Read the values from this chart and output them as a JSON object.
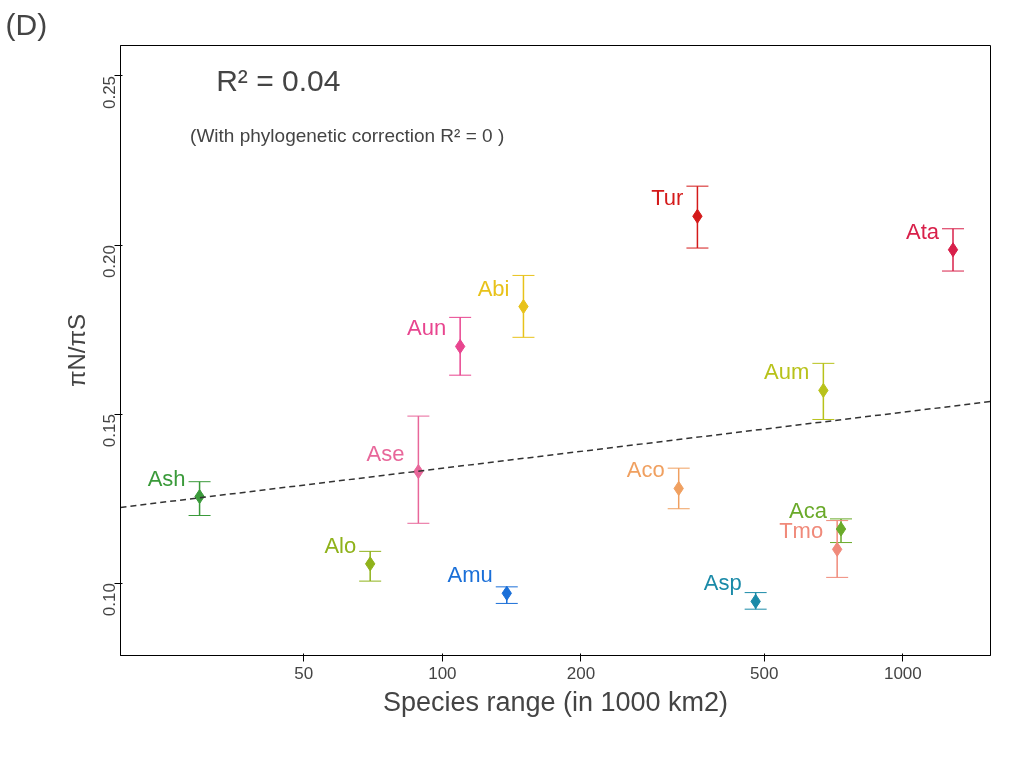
{
  "chart_data": {
    "type": "scatter",
    "xlabel": "Species range (in 1000 km2)",
    "ylabel": "πN/πS",
    "annotations": [
      "(D)",
      "R² = 0.04",
      "(With phylogenetic correction  R² = 0 )"
    ],
    "log": "x",
    "xlim": [
      20,
      1550
    ],
    "ylim": [
      0.0786,
      0.259
    ],
    "xticks": [
      50,
      100,
      200,
      500,
      1000
    ],
    "yticks": [
      {
        "value": 0.1,
        "label": "0.10"
      },
      {
        "value": 0.15,
        "label": "0.15"
      },
      {
        "value": 0.2,
        "label": "0.20"
      },
      {
        "value": 0.25,
        "label": "0.25"
      }
    ],
    "grid": false,
    "marker": "diamond",
    "series": [
      {
        "name": "Ash",
        "color": "#3a9a3a",
        "x": [
          29.7
        ],
        "values": [
          0.1256
        ],
        "errors": [
          [
            0.12,
            0.13
          ]
        ]
      },
      {
        "name": "Alo",
        "color": "#8fb21a",
        "x": [
          69.7
        ],
        "values": [
          0.1057
        ],
        "errors": [
          [
            0.1006,
            0.1094
          ]
        ]
      },
      {
        "name": "Ase",
        "color": "#e8679a",
        "x": [
          88.7
        ],
        "values": [
          0.133
        ],
        "errors": [
          [
            0.1177,
            0.1494
          ]
        ]
      },
      {
        "name": "Aun",
        "color": "#e8458f",
        "x": [
          109.3
        ],
        "values": [
          0.17
        ],
        "errors": [
          [
            0.1615,
            0.1786
          ]
        ]
      },
      {
        "name": "Amu",
        "color": "#1a6fd8",
        "x": [
          138
        ],
        "values": [
          0.097
        ],
        "errors": [
          [
            0.094,
            0.0989
          ]
        ]
      },
      {
        "name": "Abi",
        "color": "#e8c21a",
        "x": [
          150
        ],
        "values": [
          0.1818
        ],
        "errors": [
          [
            0.1727,
            0.191
          ]
        ]
      },
      {
        "name": "Tur",
        "color": "#d41a1a",
        "x": [
          358
        ],
        "values": [
          0.2085
        ],
        "errors": [
          [
            0.1991,
            0.2174
          ]
        ]
      },
      {
        "name": "Aco",
        "color": "#f0a060",
        "x": [
          326
        ],
        "values": [
          0.128
        ],
        "errors": [
          [
            0.122,
            0.134
          ]
        ]
      },
      {
        "name": "Asp",
        "color": "#1a8aa8",
        "x": [
          479
        ],
        "values": [
          0.0946
        ],
        "errors": [
          [
            0.0923,
            0.0972
          ]
        ]
      },
      {
        "name": "Aum",
        "color": "#b8c21a",
        "x": [
          672
        ],
        "values": [
          0.157
        ],
        "errors": [
          [
            0.1484,
            0.165
          ]
        ]
      },
      {
        "name": "Aca",
        "color": "#6aaa2a",
        "x": [
          734
        ],
        "values": [
          0.116
        ],
        "errors": [
          [
            0.112,
            0.119
          ]
        ]
      },
      {
        "name": "Tmo",
        "color": "#f08a7a",
        "x": [
          720
        ],
        "values": [
          0.11
        ],
        "errors": [
          [
            0.1017,
            0.1185
          ]
        ]
      },
      {
        "name": "Ata",
        "color": "#d8204a",
        "x": [
          1285
        ],
        "values": [
          0.1986
        ],
        "errors": [
          [
            0.1923,
            0.2048
          ]
        ]
      },
      {
        "type": "line",
        "color": "#333333",
        "line_style": "dashed",
        "marker": "none",
        "x": [
          20,
          1550
        ],
        "values": [
          0.1224,
          0.1537
        ]
      }
    ]
  }
}
